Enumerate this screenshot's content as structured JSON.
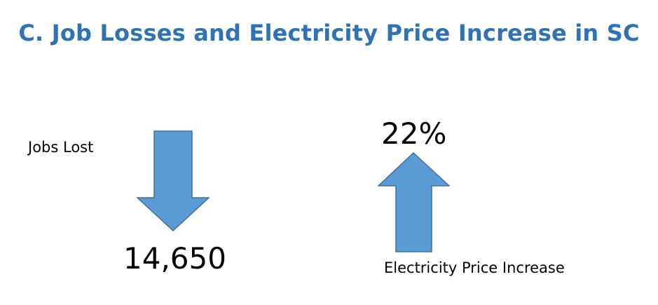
{
  "title": "C. Job Losses and Electricity Price Increase in SC",
  "jobs": {
    "label": "Jobs Lost",
    "value": "14,650",
    "arrow_direction": "down",
    "arrow_icon": "arrow-down-icon"
  },
  "electricity": {
    "label": "Electricity Price Increase",
    "value": "22%",
    "arrow_direction": "up",
    "arrow_icon": "arrow-up-icon"
  },
  "colors": {
    "title": "#2e74b5",
    "arrow_fill": "#5b9bd5",
    "arrow_stroke": "#41719c",
    "text": "#000000",
    "background": "#ffffff"
  }
}
